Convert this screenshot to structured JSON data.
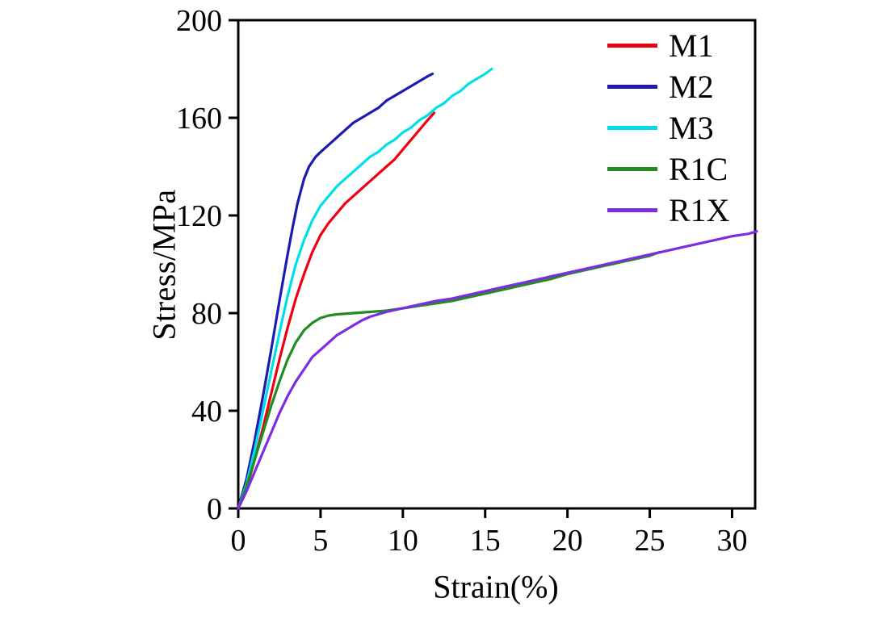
{
  "figure": {
    "background": "#ffffff",
    "frame_color": "#000000"
  },
  "chart_data": {
    "type": "line",
    "title": "",
    "xlabel": "Strain(%)",
    "ylabel": "Stress/MPa",
    "xlim": [
      0,
      31.4
    ],
    "ylim": [
      0,
      200
    ],
    "x_ticks": [
      0,
      5,
      10,
      15,
      20,
      25,
      30
    ],
    "y_ticks": [
      0,
      40,
      80,
      120,
      160,
      200
    ],
    "grid": false,
    "legend_position": "top-right-inside",
    "series": [
      {
        "name": "M1",
        "color": "#ee0011",
        "points": [
          [
            0,
            0
          ],
          [
            0.5,
            8
          ],
          [
            1,
            20
          ],
          [
            1.5,
            33
          ],
          [
            2,
            47
          ],
          [
            2.5,
            61
          ],
          [
            3,
            74
          ],
          [
            3.5,
            86
          ],
          [
            4,
            96
          ],
          [
            4.5,
            105
          ],
          [
            5,
            112
          ],
          [
            5.5,
            117
          ],
          [
            6,
            121
          ],
          [
            6.5,
            125
          ],
          [
            7,
            128
          ],
          [
            7.5,
            131
          ],
          [
            8,
            134
          ],
          [
            8.5,
            137
          ],
          [
            9,
            140
          ],
          [
            9.5,
            143
          ],
          [
            10,
            147
          ],
          [
            10.5,
            151
          ],
          [
            11,
            155
          ],
          [
            11.5,
            159
          ],
          [
            11.9,
            162
          ]
        ]
      },
      {
        "name": "M2",
        "color": "#1b1bb3",
        "points": [
          [
            0,
            0
          ],
          [
            0.5,
            12
          ],
          [
            1,
            28
          ],
          [
            1.5,
            46
          ],
          [
            2,
            65
          ],
          [
            2.5,
            85
          ],
          [
            3,
            104
          ],
          [
            3.3,
            115
          ],
          [
            3.6,
            125
          ],
          [
            4,
            135
          ],
          [
            4.3,
            140
          ],
          [
            4.7,
            144
          ],
          [
            5,
            146
          ],
          [
            5.5,
            149
          ],
          [
            6,
            152
          ],
          [
            6.5,
            155
          ],
          [
            7,
            158
          ],
          [
            7.5,
            160
          ],
          [
            8,
            162
          ],
          [
            8.5,
            164
          ],
          [
            9,
            167
          ],
          [
            9.5,
            169
          ],
          [
            10,
            171
          ],
          [
            10.5,
            173
          ],
          [
            11,
            175
          ],
          [
            11.5,
            177
          ],
          [
            11.8,
            178
          ]
        ]
      },
      {
        "name": "M3",
        "color": "#00dfe8",
        "points": [
          [
            0,
            0
          ],
          [
            0.5,
            10
          ],
          [
            1,
            24
          ],
          [
            1.5,
            40
          ],
          [
            2,
            56
          ],
          [
            2.5,
            72
          ],
          [
            3,
            87
          ],
          [
            3.5,
            100
          ],
          [
            4,
            110
          ],
          [
            4.5,
            118
          ],
          [
            5,
            124
          ],
          [
            5.5,
            128
          ],
          [
            6,
            132
          ],
          [
            6.5,
            135
          ],
          [
            7,
            138
          ],
          [
            7.5,
            141
          ],
          [
            8,
            144
          ],
          [
            8.5,
            146
          ],
          [
            9,
            149
          ],
          [
            9.5,
            151
          ],
          [
            10,
            154
          ],
          [
            10.5,
            156
          ],
          [
            11,
            159
          ],
          [
            11.5,
            161
          ],
          [
            12,
            164
          ],
          [
            12.5,
            166
          ],
          [
            13,
            169
          ],
          [
            13.5,
            171
          ],
          [
            14,
            174
          ],
          [
            14.5,
            176
          ],
          [
            15,
            178
          ],
          [
            15.4,
            180
          ]
        ]
      },
      {
        "name": "R1C",
        "color": "#228b22",
        "points": [
          [
            0,
            0
          ],
          [
            0.5,
            9
          ],
          [
            1,
            20
          ],
          [
            1.5,
            31
          ],
          [
            2,
            42
          ],
          [
            2.5,
            52
          ],
          [
            3,
            61
          ],
          [
            3.5,
            68
          ],
          [
            4,
            73
          ],
          [
            4.5,
            76
          ],
          [
            5,
            78
          ],
          [
            5.5,
            79
          ],
          [
            6,
            79.5
          ],
          [
            7,
            80
          ],
          [
            8,
            80.5
          ],
          [
            9,
            81
          ],
          [
            10,
            82
          ],
          [
            11,
            83
          ],
          [
            12,
            84
          ],
          [
            13,
            85
          ],
          [
            14,
            86.5
          ],
          [
            15,
            88
          ],
          [
            16,
            89.5
          ],
          [
            17,
            91
          ],
          [
            18,
            92.5
          ],
          [
            19,
            94
          ],
          [
            20,
            96
          ],
          [
            21,
            97.5
          ],
          [
            22,
            99
          ],
          [
            23,
            100.5
          ],
          [
            24,
            102
          ],
          [
            25,
            103.5
          ],
          [
            25.6,
            105
          ]
        ]
      },
      {
        "name": "R1X",
        "color": "#7d2ce0",
        "points": [
          [
            0,
            0
          ],
          [
            0.5,
            7
          ],
          [
            1,
            15
          ],
          [
            1.5,
            23
          ],
          [
            2,
            31
          ],
          [
            2.5,
            39
          ],
          [
            3,
            46
          ],
          [
            3.5,
            52
          ],
          [
            4,
            57
          ],
          [
            4.5,
            62
          ],
          [
            5,
            65
          ],
          [
            5.5,
            68
          ],
          [
            6,
            71
          ],
          [
            6.5,
            73
          ],
          [
            7,
            75
          ],
          [
            7.5,
            77
          ],
          [
            8,
            78.5
          ],
          [
            9,
            80.5
          ],
          [
            10,
            82
          ],
          [
            11,
            83.5
          ],
          [
            12,
            85
          ],
          [
            13,
            86
          ],
          [
            14,
            87.5
          ],
          [
            15,
            89
          ],
          [
            16,
            90.5
          ],
          [
            17,
            92
          ],
          [
            18,
            93.5
          ],
          [
            19,
            95
          ],
          [
            20,
            96.5
          ],
          [
            21,
            98
          ],
          [
            22,
            99.5
          ],
          [
            23,
            101
          ],
          [
            24,
            102.5
          ],
          [
            25,
            104
          ],
          [
            26,
            105.5
          ],
          [
            27,
            107
          ],
          [
            28,
            108.5
          ],
          [
            29,
            110
          ],
          [
            30,
            111.5
          ],
          [
            31,
            112.5
          ],
          [
            31.5,
            113.5
          ]
        ]
      }
    ]
  }
}
